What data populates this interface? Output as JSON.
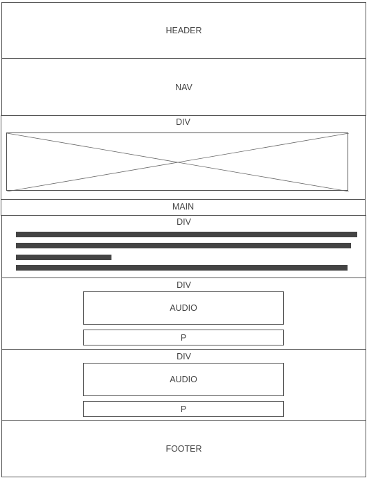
{
  "blocks": {
    "header": "HEADER",
    "nav": "NAV",
    "div_image": "DIV",
    "main": "MAIN",
    "div_text": "DIV",
    "div_audio_1": "DIV",
    "audio_1": "AUDIO",
    "p_1": "P",
    "div_audio_2": "DIV",
    "audio_2": "AUDIO",
    "p_2": "P",
    "footer": "FOOTER"
  }
}
